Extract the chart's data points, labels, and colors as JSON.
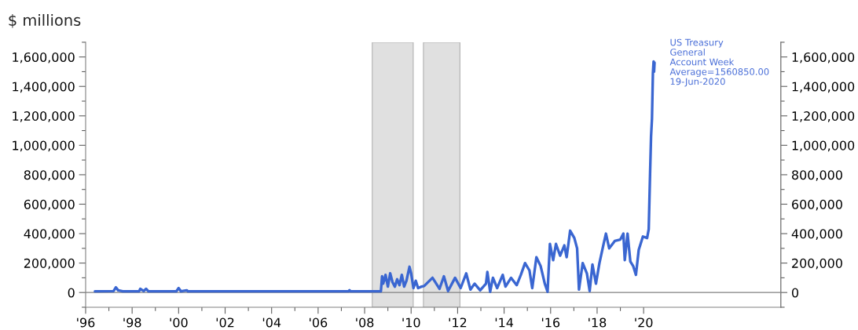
{
  "chart_data": {
    "type": "line",
    "title": "$ millions",
    "x": [
      1996.4,
      1997.2,
      1997.3,
      1997.4,
      1997.6,
      1998.3,
      1998.35,
      1998.5,
      1998.6,
      1998.7,
      1999.9,
      2000.0,
      2000.1,
      2000.35,
      2000.4,
      2007.3,
      2007.35,
      2007.4,
      2008.7,
      2008.75,
      2008.8,
      2008.9,
      2009.0,
      2009.1,
      2009.2,
      2009.3,
      2009.4,
      2009.5,
      2009.6,
      2009.7,
      2009.8,
      2009.93,
      2010.0,
      2010.1,
      2010.2,
      2010.3,
      2010.45,
      2010.56,
      2010.92,
      2011.22,
      2011.41,
      2011.59,
      2011.89,
      2012.13,
      2012.37,
      2012.55,
      2012.73,
      2012.97,
      2013.22,
      2013.28,
      2013.4,
      2013.52,
      2013.7,
      2013.94,
      2014.06,
      2014.3,
      2014.54,
      2014.72,
      2014.9,
      2015.09,
      2015.21,
      2015.39,
      2015.57,
      2015.75,
      2015.87,
      2015.97,
      2016.11,
      2016.23,
      2016.41,
      2016.59,
      2016.69,
      2016.84,
      2017.02,
      2017.14,
      2017.22,
      2017.38,
      2017.56,
      2017.68,
      2017.8,
      2017.95,
      2018.1,
      2018.28,
      2018.38,
      2018.52,
      2018.76,
      2019.0,
      2019.13,
      2019.19,
      2019.31,
      2019.43,
      2019.55,
      2019.67,
      2019.79,
      2019.97,
      2020.15,
      2020.22,
      2020.28,
      2020.32,
      2020.36,
      2020.4,
      2020.43,
      2020.45,
      2020.47
    ],
    "series": [
      {
        "color": "#3a66d1",
        "values": [
          8000,
          10000,
          35000,
          15000,
          8000,
          8000,
          25000,
          10000,
          25000,
          8000,
          8000,
          30000,
          8000,
          15000,
          8000,
          8000,
          15000,
          8000,
          8000,
          110000,
          60000,
          120000,
          40000,
          130000,
          70000,
          40000,
          90000,
          50000,
          120000,
          40000,
          80000,
          175000,
          130000,
          30000,
          80000,
          30000,
          40000,
          44000,
          100000,
          25000,
          110000,
          10000,
          100000,
          30000,
          130000,
          20000,
          60000,
          15000,
          60000,
          140000,
          5000,
          100000,
          30000,
          120000,
          40000,
          100000,
          50000,
          120000,
          200000,
          150000,
          30000,
          240000,
          180000,
          60000,
          5000,
          330000,
          220000,
          330000,
          250000,
          320000,
          240000,
          420000,
          370000,
          300000,
          20000,
          200000,
          130000,
          10000,
          190000,
          60000,
          200000,
          330000,
          400000,
          300000,
          350000,
          360000,
          400000,
          220000,
          400000,
          210000,
          180000,
          120000,
          290000,
          380000,
          370000,
          430000,
          820000,
          1060000,
          1180000,
          1490000,
          1570000,
          1500000,
          1560850
        ]
      }
    ],
    "xlim": [
      1996,
      2025.9
    ],
    "xticks": [
      {
        "value": 1996,
        "label": "'96"
      },
      {
        "value": 1997,
        "label": null
      },
      {
        "value": 1998,
        "label": "'98"
      },
      {
        "value": 1999,
        "label": null
      },
      {
        "value": 2000,
        "label": "'00"
      },
      {
        "value": 2001,
        "label": null
      },
      {
        "value": 2002,
        "label": "'02"
      },
      {
        "value": 2003,
        "label": null
      },
      {
        "value": 2004,
        "label": "'04"
      },
      {
        "value": 2005,
        "label": null
      },
      {
        "value": 2006,
        "label": "'06"
      },
      {
        "value": 2007,
        "label": null
      },
      {
        "value": 2008,
        "label": "'08"
      },
      {
        "value": 2009,
        "label": null
      },
      {
        "value": 2010,
        "label": "'10"
      },
      {
        "value": 2011,
        "label": null
      },
      {
        "value": 2012,
        "label": "'12"
      },
      {
        "value": 2013,
        "label": null
      },
      {
        "value": 2014,
        "label": "'14"
      },
      {
        "value": 2015,
        "label": null
      },
      {
        "value": 2016,
        "label": "'16"
      },
      {
        "value": 2017,
        "label": null
      },
      {
        "value": 2018,
        "label": "'18"
      },
      {
        "value": 2019,
        "label": null
      },
      {
        "value": 2020,
        "label": "'20"
      }
    ],
    "ylim": [
      -100000,
      1700000
    ],
    "yticks": [
      {
        "value": -100000,
        "label": null
      },
      {
        "value": 0,
        "label": "0"
      },
      {
        "value": 100000,
        "label": null
      },
      {
        "value": 200000,
        "label": "200,000"
      },
      {
        "value": 300000,
        "label": null
      },
      {
        "value": 400000,
        "label": "400,000"
      },
      {
        "value": 500000,
        "label": null
      },
      {
        "value": 600000,
        "label": "600,000"
      },
      {
        "value": 700000,
        "label": null
      },
      {
        "value": 800000,
        "label": "800,000"
      },
      {
        "value": 900000,
        "label": null
      },
      {
        "value": 1000000,
        "label": "1,000,000"
      },
      {
        "value": 1100000,
        "label": null
      },
      {
        "value": 1200000,
        "label": "1,200,000"
      },
      {
        "value": 1300000,
        "label": null
      },
      {
        "value": 1400000,
        "label": "1,400,000"
      },
      {
        "value": 1500000,
        "label": null
      },
      {
        "value": 1600000,
        "label": "1,600,000"
      },
      {
        "value": 1700000,
        "label": null
      }
    ],
    "y2lim": [
      -100000,
      1700000
    ],
    "y2ticks": [
      {
        "value": -100000,
        "label": null
      },
      {
        "value": 0,
        "label": "0"
      },
      {
        "value": 100000,
        "label": null
      },
      {
        "value": 200000,
        "label": "200,000"
      },
      {
        "value": 300000,
        "label": null
      },
      {
        "value": 400000,
        "label": "400,000"
      },
      {
        "value": 500000,
        "label": null
      },
      {
        "value": 600000,
        "label": "600,000"
      },
      {
        "value": 700000,
        "label": null
      },
      {
        "value": 800000,
        "label": "800,000"
      },
      {
        "value": 900000,
        "label": null
      },
      {
        "value": 1000000,
        "label": "1,000,000"
      },
      {
        "value": 1100000,
        "label": null
      },
      {
        "value": 1200000,
        "label": "1,200,000"
      },
      {
        "value": 1300000,
        "label": null
      },
      {
        "value": 1400000,
        "label": "1,400,000"
      },
      {
        "value": 1500000,
        "label": null
      },
      {
        "value": 1600000,
        "label": "1,600,000"
      },
      {
        "value": 1700000,
        "label": null
      }
    ],
    "ref_lines": [
      {
        "axis": "y",
        "value": 0,
        "color": "#808080"
      }
    ],
    "bands": [
      {
        "axis": "x",
        "from": 2008.33,
        "to": 2010.09,
        "color": "#e0e0e0"
      },
      {
        "axis": "x",
        "from": 2010.53,
        "to": 2012.1,
        "color": "#e0e0e0"
      }
    ],
    "annotations": [
      {
        "text": "US Treasury\nGeneral\nAccount Week\nAverage=1560850.00\n19-Jun-2020",
        "x": 2020.47,
        "y": 1560850
      }
    ],
    "grid": false,
    "legend": false
  }
}
